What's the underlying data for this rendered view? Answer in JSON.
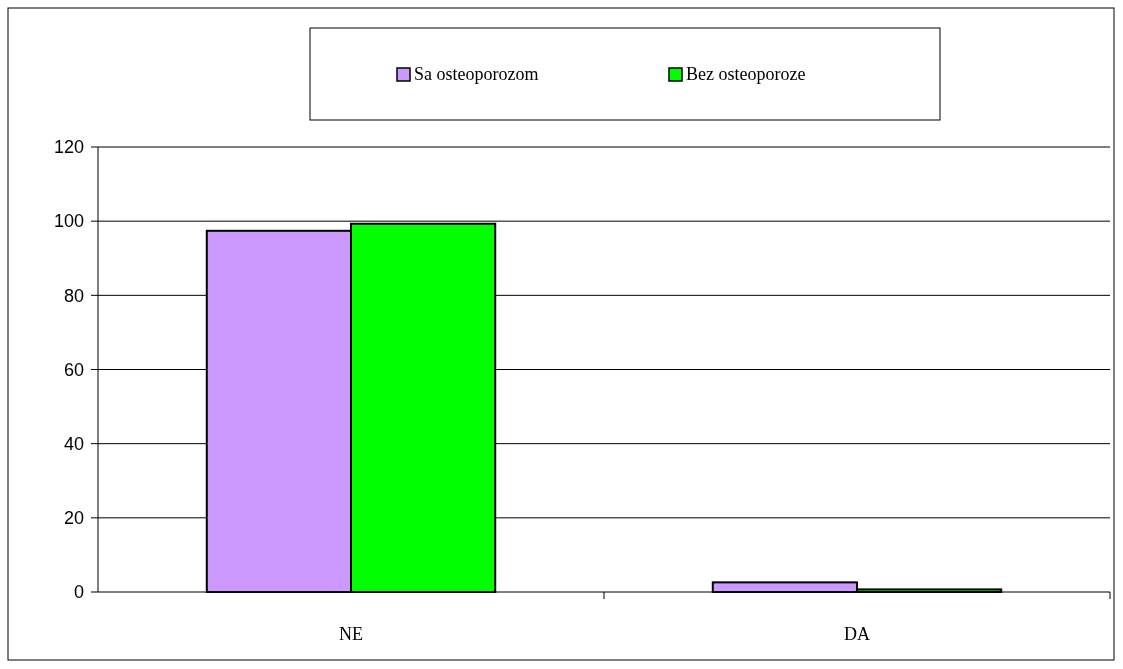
{
  "chart_data": {
    "type": "bar",
    "categories": [
      "NE",
      "DA"
    ],
    "series": [
      {
        "name": "Sa osteoporozom",
        "color": "#cc99ff",
        "values": [
          97.4,
          2.6
        ]
      },
      {
        "name": "Bez osteoporoze",
        "color": "#00ff00",
        "values": [
          99.3,
          0.7
        ]
      }
    ],
    "ylim": [
      0,
      120
    ],
    "yticks": [
      0,
      20,
      40,
      60,
      80,
      100,
      120
    ],
    "grid": "y",
    "legend": "top"
  }
}
